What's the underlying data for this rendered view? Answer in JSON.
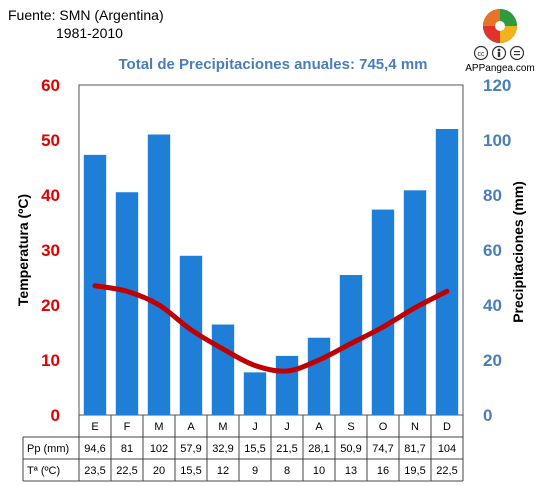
{
  "source": {
    "line1": "Fuente: SMN (Argentina)",
    "line2": "1981-2010"
  },
  "brand": {
    "name": "APPangea.com"
  },
  "colors": {
    "bars": "#1f7fd8",
    "line": "#c00000",
    "left_axis": "#e00000",
    "right_axis": "#4a7ebb"
  },
  "chart_data": {
    "type": "bar",
    "title": "Total de Precipitaciones anuales: 745,4 mm",
    "categories": [
      "E",
      "F",
      "M",
      "A",
      "M",
      "J",
      "J",
      "A",
      "S",
      "O",
      "N",
      "D"
    ],
    "series": [
      {
        "name": "Pp (mm)",
        "type": "bar",
        "axis": "right",
        "values": [
          94.6,
          81,
          102,
          57.9,
          32.9,
          15.5,
          21.5,
          28.1,
          50.9,
          74.7,
          81.7,
          104
        ]
      },
      {
        "name": "Tª (ºC)",
        "type": "line",
        "axis": "left",
        "values": [
          23.5,
          22.5,
          20,
          15.5,
          12,
          9,
          8,
          10,
          13,
          16,
          19.5,
          22.5
        ]
      }
    ],
    "y_left": {
      "label": "Temperatura (ºC)",
      "range": [
        0,
        60
      ],
      "ticks": [
        "0",
        "10",
        "20",
        "30",
        "40",
        "50",
        "60"
      ]
    },
    "y_right": {
      "label": "Precipitaciones (mm)",
      "range": [
        0,
        120
      ],
      "ticks": [
        "0",
        "20",
        "40",
        "60",
        "80",
        "100",
        "120"
      ]
    },
    "grid": false,
    "table": {
      "rows": [
        {
          "label": "Pp (mm)",
          "cells": [
            "94,6",
            "81",
            "102",
            "57,9",
            "32,9",
            "15,5",
            "21,5",
            "28,1",
            "50,9",
            "74,7",
            "81,7",
            "104"
          ]
        },
        {
          "label": "Tª (ºC)",
          "cells": [
            "23,5",
            "22,5",
            "20",
            "15,5",
            "12",
            "9",
            "8",
            "10",
            "13",
            "16",
            "19,5",
            "22,5"
          ]
        }
      ]
    }
  }
}
